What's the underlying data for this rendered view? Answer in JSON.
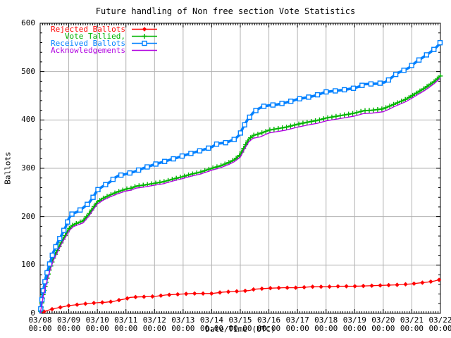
{
  "page": {
    "background": "#ffffff"
  },
  "chart_data": {
    "type": "line",
    "title": "Future handling of Non free section Vote Statistics",
    "xlabel": "Date/Time (UTC)",
    "ylabel": "Ballots",
    "x_unit_days_origin": "03/08 00:00 UTC",
    "xlim": [
      0,
      14
    ],
    "ylim": [
      0,
      600
    ],
    "y_ticks": [
      0,
      100,
      200,
      300,
      400,
      500,
      600
    ],
    "y_minor_per_major": 5,
    "x_ticks": [
      {
        "date": "03/08",
        "time": "00:00"
      },
      {
        "date": "03/09",
        "time": "00:00"
      },
      {
        "date": "03/10",
        "time": "00:00"
      },
      {
        "date": "03/11",
        "time": "00:00"
      },
      {
        "date": "03/12",
        "time": "00:00"
      },
      {
        "date": "03/13",
        "time": "00:00"
      },
      {
        "date": "03/14",
        "time": "00:00"
      },
      {
        "date": "03/15",
        "time": "00:00"
      },
      {
        "date": "03/16",
        "time": "00:00"
      },
      {
        "date": "03/17",
        "time": "00:00"
      },
      {
        "date": "03/18",
        "time": "00:00"
      },
      {
        "date": "03/19",
        "time": "00:00"
      },
      {
        "date": "03/20",
        "time": "00:00"
      },
      {
        "date": "03/21",
        "time": "00:00"
      },
      {
        "date": "03/22",
        "time": "00:00"
      }
    ],
    "x_minor_per_major": 12,
    "grid": true,
    "grid_color": "#b2b2b2",
    "axis_color": "#000000",
    "legend_position": "top-left",
    "series": [
      {
        "name": "Rejected Ballots",
        "color": "#ff0000",
        "marker": "diamond",
        "line_width": 1.3,
        "marker_step": 12,
        "points": [
          [
            0,
            0
          ],
          [
            0.1,
            3
          ],
          [
            0.25,
            6
          ],
          [
            0.5,
            10
          ],
          [
            0.75,
            13
          ],
          [
            1.0,
            16
          ],
          [
            1.3,
            18
          ],
          [
            1.6,
            20
          ],
          [
            2.0,
            22
          ],
          [
            2.3,
            23
          ],
          [
            2.6,
            25
          ],
          [
            2.8,
            28
          ],
          [
            3.0,
            30
          ],
          [
            3.15,
            33
          ],
          [
            3.4,
            34
          ],
          [
            4.0,
            35
          ],
          [
            4.4,
            38
          ],
          [
            5.0,
            40
          ],
          [
            5.3,
            41
          ],
          [
            6.0,
            41
          ],
          [
            6.4,
            44
          ],
          [
            7.0,
            46
          ],
          [
            7.3,
            47
          ],
          [
            7.5,
            50
          ],
          [
            8.0,
            52
          ],
          [
            8.5,
            53
          ],
          [
            9.0,
            53
          ],
          [
            9.5,
            55
          ],
          [
            10.0,
            55
          ],
          [
            10.5,
            56
          ],
          [
            11.0,
            56
          ],
          [
            11.5,
            57
          ],
          [
            12.0,
            58
          ],
          [
            12.5,
            59
          ],
          [
            13.0,
            61
          ],
          [
            13.3,
            63
          ],
          [
            13.6,
            65
          ],
          [
            13.8,
            67
          ],
          [
            14.0,
            70
          ]
        ]
      },
      {
        "name": "Vote Tallied,",
        "color": "#00b400",
        "marker": "plus",
        "line_width": 2.0,
        "marker_step": 6,
        "points": [
          [
            0,
            0
          ],
          [
            0.04,
            15
          ],
          [
            0.1,
            38
          ],
          [
            0.2,
            62
          ],
          [
            0.3,
            85
          ],
          [
            0.45,
            112
          ],
          [
            0.6,
            130
          ],
          [
            0.75,
            148
          ],
          [
            0.9,
            163
          ],
          [
            1.0,
            174
          ],
          [
            1.15,
            183
          ],
          [
            1.35,
            188
          ],
          [
            1.5,
            191
          ],
          [
            1.7,
            205
          ],
          [
            1.85,
            218
          ],
          [
            2.0,
            230
          ],
          [
            2.2,
            238
          ],
          [
            2.45,
            245
          ],
          [
            2.7,
            251
          ],
          [
            3.0,
            257
          ],
          [
            3.2,
            259
          ],
          [
            3.35,
            263
          ],
          [
            3.6,
            265
          ],
          [
            4.0,
            269
          ],
          [
            4.3,
            272
          ],
          [
            4.6,
            277
          ],
          [
            5.0,
            283
          ],
          [
            5.3,
            288
          ],
          [
            5.6,
            292
          ],
          [
            6.0,
            300
          ],
          [
            6.3,
            305
          ],
          [
            6.6,
            312
          ],
          [
            6.8,
            318
          ],
          [
            7.0,
            328
          ],
          [
            7.15,
            345
          ],
          [
            7.3,
            360
          ],
          [
            7.45,
            368
          ],
          [
            7.7,
            372
          ],
          [
            8.0,
            379
          ],
          [
            8.3,
            382
          ],
          [
            8.6,
            385
          ],
          [
            9.0,
            391
          ],
          [
            9.4,
            396
          ],
          [
            9.7,
            399
          ],
          [
            10.0,
            404
          ],
          [
            10.3,
            407
          ],
          [
            10.6,
            410
          ],
          [
            11.0,
            414
          ],
          [
            11.3,
            419
          ],
          [
            11.6,
            420
          ],
          [
            12.0,
            423
          ],
          [
            12.2,
            428
          ],
          [
            12.4,
            433
          ],
          [
            12.6,
            438
          ],
          [
            12.8,
            443
          ],
          [
            13.0,
            450
          ],
          [
            13.2,
            457
          ],
          [
            13.4,
            464
          ],
          [
            13.6,
            472
          ],
          [
            13.8,
            480
          ],
          [
            14.0,
            491
          ]
        ]
      },
      {
        "name": "Received Ballots",
        "color": "#0080ff",
        "marker": "square",
        "line_width": 3.6,
        "marker_step": 13,
        "points": [
          [
            0,
            0
          ],
          [
            0.04,
            18
          ],
          [
            0.1,
            45
          ],
          [
            0.2,
            75
          ],
          [
            0.3,
            96
          ],
          [
            0.45,
            125
          ],
          [
            0.6,
            145
          ],
          [
            0.75,
            162
          ],
          [
            0.9,
            180
          ],
          [
            1.0,
            196
          ],
          [
            1.1,
            205
          ],
          [
            1.3,
            210
          ],
          [
            1.5,
            218
          ],
          [
            1.7,
            228
          ],
          [
            1.85,
            240
          ],
          [
            2.0,
            255
          ],
          [
            2.2,
            263
          ],
          [
            2.45,
            272
          ],
          [
            2.6,
            280
          ],
          [
            2.75,
            285
          ],
          [
            3.0,
            288
          ],
          [
            3.3,
            293
          ],
          [
            3.6,
            300
          ],
          [
            4.0,
            308
          ],
          [
            4.4,
            315
          ],
          [
            4.8,
            322
          ],
          [
            5.0,
            326
          ],
          [
            5.4,
            333
          ],
          [
            5.8,
            340
          ],
          [
            6.0,
            344
          ],
          [
            6.2,
            351
          ],
          [
            6.5,
            353
          ],
          [
            6.8,
            360
          ],
          [
            6.95,
            368
          ],
          [
            7.0,
            372
          ],
          [
            7.1,
            385
          ],
          [
            7.25,
            400
          ],
          [
            7.45,
            415
          ],
          [
            7.6,
            422
          ],
          [
            7.8,
            428
          ],
          [
            8.0,
            430
          ],
          [
            8.3,
            432
          ],
          [
            8.6,
            436
          ],
          [
            8.85,
            440
          ],
          [
            9.0,
            443
          ],
          [
            9.3,
            446
          ],
          [
            9.6,
            450
          ],
          [
            9.85,
            455
          ],
          [
            10.0,
            458
          ],
          [
            10.3,
            460
          ],
          [
            10.6,
            462
          ],
          [
            10.9,
            465
          ],
          [
            11.0,
            466
          ],
          [
            11.2,
            470
          ],
          [
            11.35,
            474
          ],
          [
            11.8,
            475
          ],
          [
            12.05,
            478
          ],
          [
            12.15,
            481
          ],
          [
            12.3,
            488
          ],
          [
            12.5,
            497
          ],
          [
            12.7,
            502
          ],
          [
            12.9,
            508
          ],
          [
            13.0,
            513
          ],
          [
            13.2,
            522
          ],
          [
            13.4,
            530
          ],
          [
            13.6,
            538
          ],
          [
            13.8,
            547
          ],
          [
            13.95,
            556
          ],
          [
            14.0,
            561
          ]
        ]
      },
      {
        "name": "Acknowledgements",
        "color": "#b000e0",
        "marker": "none",
        "line_width": 1.3,
        "marker_step": 0,
        "points": [
          [
            0,
            0
          ],
          [
            0.04,
            12
          ],
          [
            0.1,
            34
          ],
          [
            0.2,
            58
          ],
          [
            0.3,
            81
          ],
          [
            0.45,
            108
          ],
          [
            0.6,
            126
          ],
          [
            0.75,
            144
          ],
          [
            0.9,
            159
          ],
          [
            1.0,
            170
          ],
          [
            1.15,
            179
          ],
          [
            1.35,
            184
          ],
          [
            1.5,
            187
          ],
          [
            1.7,
            201
          ],
          [
            1.85,
            214
          ],
          [
            2.0,
            226
          ],
          [
            2.2,
            234
          ],
          [
            2.45,
            241
          ],
          [
            2.7,
            247
          ],
          [
            3.0,
            253
          ],
          [
            3.2,
            255
          ],
          [
            3.35,
            259
          ],
          [
            3.6,
            261
          ],
          [
            4.0,
            265
          ],
          [
            4.3,
            268
          ],
          [
            4.6,
            273
          ],
          [
            5.0,
            279
          ],
          [
            5.3,
            284
          ],
          [
            5.6,
            288
          ],
          [
            6.0,
            296
          ],
          [
            6.3,
            301
          ],
          [
            6.6,
            308
          ],
          [
            6.8,
            314
          ],
          [
            7.0,
            323
          ],
          [
            7.15,
            340
          ],
          [
            7.3,
            355
          ],
          [
            7.45,
            362
          ],
          [
            7.7,
            365
          ],
          [
            8.0,
            373
          ],
          [
            8.3,
            376
          ],
          [
            8.6,
            379
          ],
          [
            9.0,
            385
          ],
          [
            9.4,
            390
          ],
          [
            9.7,
            393
          ],
          [
            10.0,
            398
          ],
          [
            10.3,
            401
          ],
          [
            10.6,
            404
          ],
          [
            11.0,
            408
          ],
          [
            11.3,
            413
          ],
          [
            11.6,
            414
          ],
          [
            12.0,
            417
          ],
          [
            12.2,
            422
          ],
          [
            12.4,
            428
          ],
          [
            12.6,
            433
          ],
          [
            12.8,
            438
          ],
          [
            13.0,
            445
          ],
          [
            13.2,
            452
          ],
          [
            13.4,
            459
          ],
          [
            13.6,
            467
          ],
          [
            13.8,
            476
          ],
          [
            14.0,
            487
          ]
        ]
      }
    ]
  }
}
